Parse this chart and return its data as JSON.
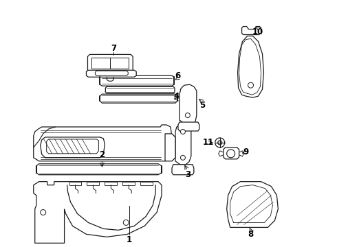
{
  "bg_color": "#ffffff",
  "line_color": "#1a1a1a",
  "text_color": "#000000",
  "figsize": [
    4.9,
    3.6
  ],
  "dpi": 100,
  "lw": 0.9
}
